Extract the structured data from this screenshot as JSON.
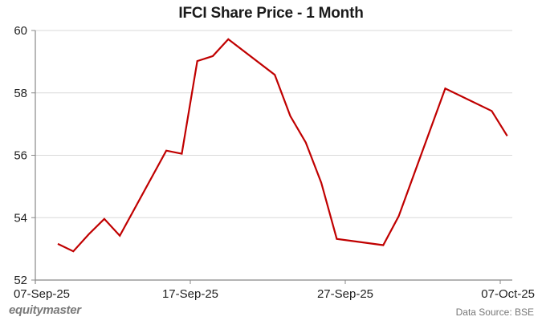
{
  "chart_data": {
    "type": "line",
    "title": "IFCI Share Price - 1 Month",
    "xlabel": "",
    "ylabel": "",
    "ylim": [
      52,
      60
    ],
    "yticks": [
      52,
      54,
      56,
      58,
      60
    ],
    "xticks": [
      "07-Sep-25",
      "17-Sep-25",
      "27-Sep-25",
      "07-Oct-25"
    ],
    "grid": true,
    "legend": null,
    "series": [
      {
        "name": "IFCI",
        "color": "#c00000",
        "points": [
          {
            "date": "08-Sep-25",
            "day": 1,
            "value": 53.16
          },
          {
            "date": "09-Sep-25",
            "day": 2,
            "value": 52.92
          },
          {
            "date": "10-Sep-25",
            "day": 3,
            "value": 53.47
          },
          {
            "date": "11-Sep-25",
            "day": 4,
            "value": 53.96
          },
          {
            "date": "12-Sep-25",
            "day": 5,
            "value": 53.42
          },
          {
            "date": "15-Sep-25",
            "day": 8,
            "value": 56.15
          },
          {
            "date": "16-Sep-25",
            "day": 9,
            "value": 56.05
          },
          {
            "date": "17-Sep-25",
            "day": 10,
            "value": 59.02
          },
          {
            "date": "18-Sep-25",
            "day": 11,
            "value": 59.18
          },
          {
            "date": "19-Sep-25",
            "day": 12,
            "value": 59.72
          },
          {
            "date": "22-Sep-25",
            "day": 15,
            "value": 58.58
          },
          {
            "date": "23-Sep-25",
            "day": 16,
            "value": 57.26
          },
          {
            "date": "24-Sep-25",
            "day": 17,
            "value": 56.41
          },
          {
            "date": "25-Sep-25",
            "day": 18,
            "value": 55.12
          },
          {
            "date": "26-Sep-25",
            "day": 19,
            "value": 53.32
          },
          {
            "date": "29-Sep-25",
            "day": 22,
            "value": 53.12
          },
          {
            "date": "30-Sep-25",
            "day": 23,
            "value": 54.05
          },
          {
            "date": "03-Oct-25",
            "day": 26,
            "value": 58.14
          },
          {
            "date": "06-Oct-25",
            "day": 29,
            "value": 57.42
          },
          {
            "date": "07-Oct-25",
            "day": 30,
            "value": 56.62
          }
        ]
      }
    ]
  },
  "footer": {
    "brand": "equitymaster",
    "source": "Data Source: BSE"
  }
}
